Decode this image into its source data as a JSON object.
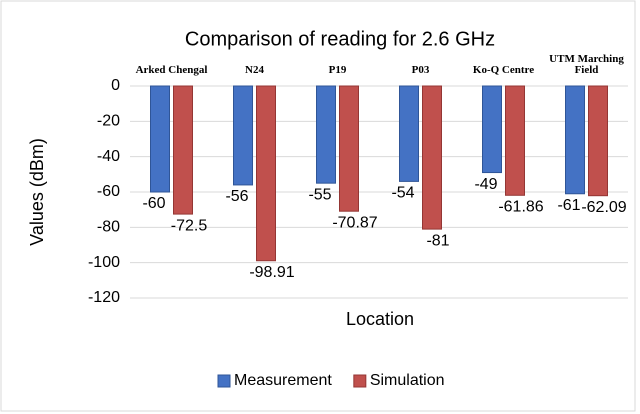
{
  "chart_data": {
    "type": "bar",
    "title": "Comparison of reading for 2.6 GHz",
    "x_label": "Location",
    "y_label": "Values (dBm)",
    "categories": [
      "Arked Chengal",
      "N24",
      "P19",
      "P03",
      "Ko-Q Centre",
      "UTM Marching Field"
    ],
    "series": [
      {
        "name": "Measurement",
        "color": "#4472c4",
        "values": [
          -60,
          -56,
          -55,
          -54,
          -49,
          -61
        ]
      },
      {
        "name": "Simulation",
        "color": "#c0504d",
        "values": [
          -72.5,
          -98.91,
          -70.87,
          -81,
          -61.86,
          -62.09
        ]
      }
    ],
    "ylim": [
      -120,
      0
    ],
    "yticks": [
      0,
      -20,
      -40,
      -60,
      -80,
      -100,
      -120
    ],
    "grid": true,
    "legend": "bottom"
  }
}
